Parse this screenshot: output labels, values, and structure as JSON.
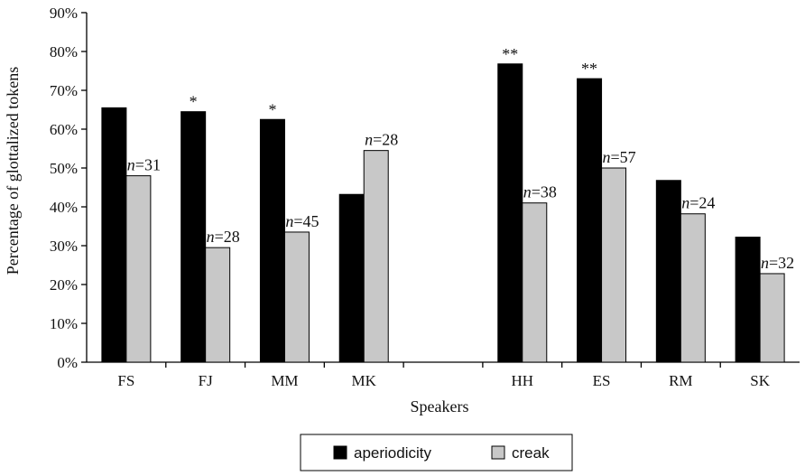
{
  "chart_data": {
    "type": "bar",
    "title": "",
    "xlabel": "Speakers",
    "ylabel": "Percentage of glottalized tokens",
    "ylim": [
      0,
      90
    ],
    "yticks": [
      "0%",
      "10%",
      "20%",
      "30%",
      "40%",
      "50%",
      "60%",
      "70%",
      "80%",
      "90%"
    ],
    "categories": [
      "FS",
      "FJ",
      "MM",
      "MK",
      "",
      "HH",
      "ES",
      "RM",
      "SK"
    ],
    "series": [
      {
        "name": "aperiodicity",
        "color": "#000000",
        "values": [
          65.5,
          64.5,
          62.5,
          43.2,
          null,
          76.8,
          73.0,
          46.8,
          32.2
        ]
      },
      {
        "name": "creak",
        "color": "#c8c8c8",
        "values": [
          48.0,
          29.5,
          33.5,
          54.5,
          null,
          41.0,
          50.0,
          38.2,
          22.8
        ]
      }
    ],
    "significance": [
      "",
      "*",
      "*",
      "",
      "",
      "**",
      "**",
      "",
      ""
    ],
    "n_labels": [
      "31",
      "28",
      "45",
      "28",
      "",
      "38",
      "57",
      "24",
      "32"
    ],
    "n_prefix": "n",
    "n_separator": "=",
    "grid": false,
    "legend_position": "bottom-center"
  }
}
